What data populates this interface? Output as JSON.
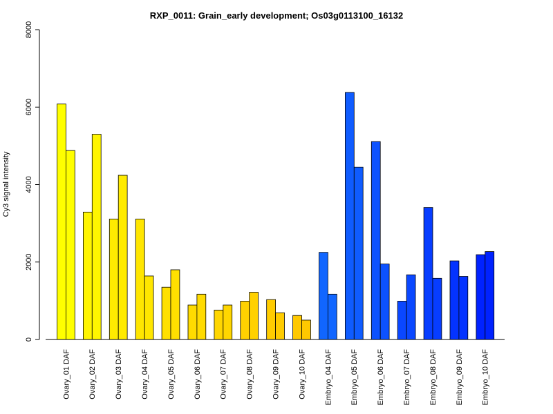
{
  "chart_data": {
    "type": "bar",
    "title": "RXP_0011: Grain_early development; Os03g0113100_16132",
    "ylabel": "Cy3 signal intensity",
    "xlabel": "",
    "ylim": [
      0,
      8000
    ],
    "yticks": [
      0,
      2000,
      4000,
      6000,
      8000
    ],
    "grid": false,
    "categories": [
      "Ovary_01 DAF",
      "Ovary_02 DAF",
      "Ovary_03 DAF",
      "Ovary_04 DAF",
      "Ovary_05 DAF",
      "Ovary_06 DAF",
      "Ovary_07 DAF",
      "Ovary_08 DAF",
      "Ovary_09 DAF",
      "Ovary_10 DAF",
      "Embryo_04 DAF",
      "Embryo_05 DAF",
      "Embryo_06 DAF",
      "Embryo_07 DAF",
      "Embryo_08 DAF",
      "Embryo_09 DAF",
      "Embryo_10 DAF"
    ],
    "values": [
      [
        6080,
        4880
      ],
      [
        3290,
        5300
      ],
      [
        3110,
        4240
      ],
      [
        3110,
        1640
      ],
      [
        1350,
        1800
      ],
      [
        890,
        1170
      ],
      [
        760,
        890
      ],
      [
        990,
        1220
      ],
      [
        1030,
        690
      ],
      [
        620,
        500
      ],
      [
        2250,
        1170
      ],
      [
        6380,
        4450
      ],
      [
        5110,
        1950
      ],
      [
        990,
        1670
      ],
      [
        3410,
        1580
      ],
      [
        2030,
        1630
      ],
      [
        2190,
        2270
      ]
    ],
    "colors": [
      "#ffff00",
      "#fff500",
      "#ffeb00",
      "#ffe600",
      "#ffe000",
      "#ffdb00",
      "#ffd600",
      "#ffd100",
      "#ffcc00",
      "#ffc800",
      "#1166ff",
      "#0f5cff",
      "#0d52ff",
      "#0a47ff",
      "#073dff",
      "#0433ff",
      "#0022ff"
    ]
  }
}
